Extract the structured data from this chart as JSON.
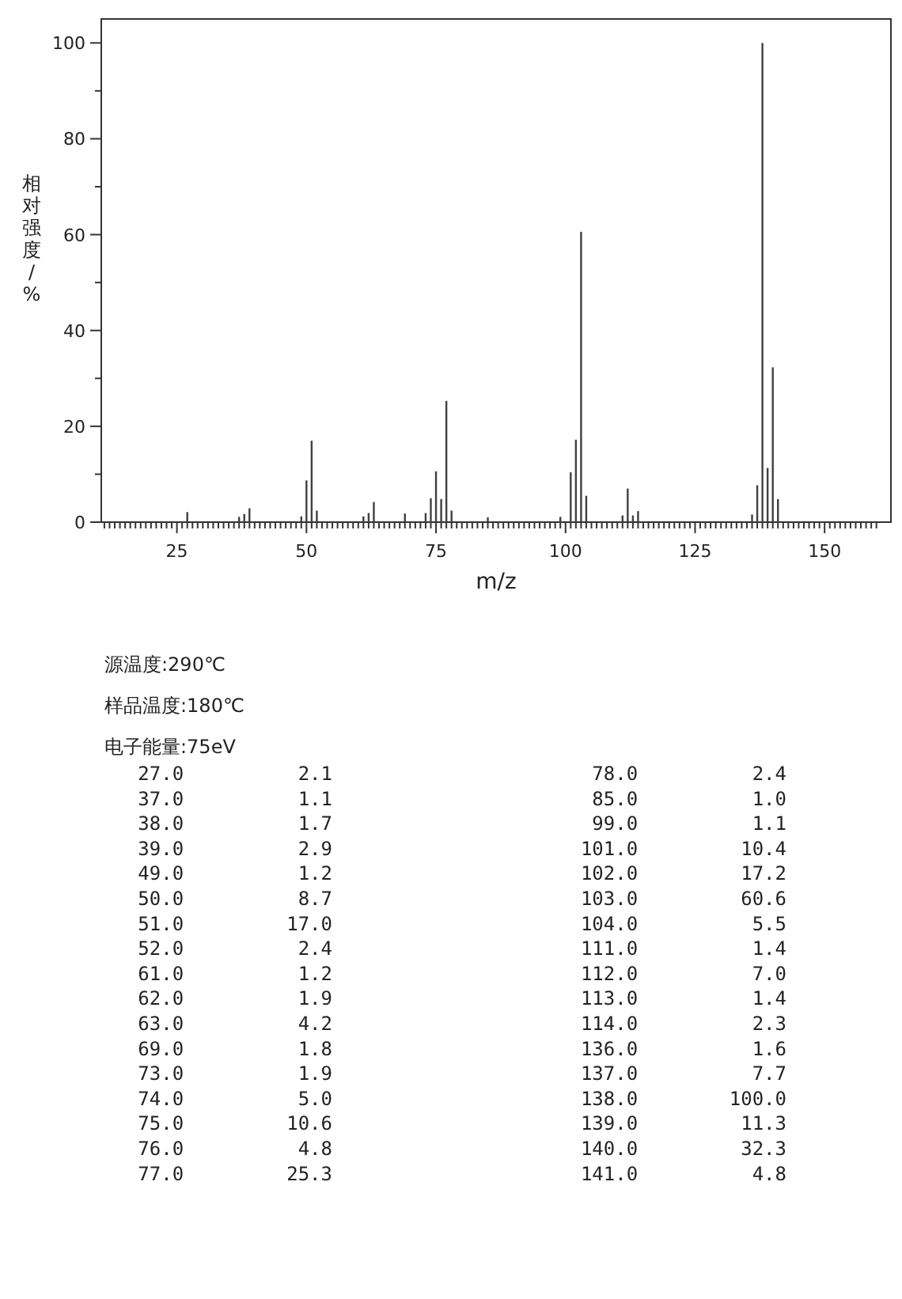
{
  "chart_data": [
    {
      "type": "bar",
      "xlabel": "m/z",
      "ylabel": "相对强度/%",
      "x": [
        27,
        37,
        38,
        39,
        49,
        50,
        51,
        52,
        61,
        62,
        63,
        69,
        73,
        74,
        75,
        76,
        77,
        78,
        85,
        99,
        101,
        102,
        103,
        104,
        111,
        112,
        113,
        114,
        136,
        137,
        138,
        139,
        140,
        141
      ],
      "values": [
        2.1,
        1.1,
        1.7,
        2.9,
        1.2,
        8.7,
        17.0,
        2.4,
        1.2,
        1.9,
        4.2,
        1.8,
        1.9,
        5.0,
        10.6,
        4.8,
        25.3,
        2.4,
        1.0,
        1.1,
        10.4,
        17.2,
        60.6,
        5.5,
        1.4,
        7.0,
        1.4,
        2.3,
        1.6,
        7.7,
        100.0,
        11.3,
        32.3,
        4.8
      ],
      "color": "#404040",
      "xlim": [
        10.4,
        162.8
      ],
      "ylim": [
        0,
        105
      ],
      "xticks": [
        {
          "value": 11,
          "label": null
        },
        {
          "value": 12,
          "label": null
        },
        {
          "value": 13,
          "label": null
        },
        {
          "value": 14,
          "label": null
        },
        {
          "value": 15,
          "label": null
        },
        {
          "value": 16,
          "label": null
        },
        {
          "value": 17,
          "label": null
        },
        {
          "value": 18,
          "label": null
        },
        {
          "value": 19,
          "label": null
        },
        {
          "value": 20,
          "label": null
        },
        {
          "value": 21,
          "label": null
        },
        {
          "value": 22,
          "label": null
        },
        {
          "value": 23,
          "label": null
        },
        {
          "value": 24,
          "label": null
        },
        25,
        {
          "value": 26,
          "label": null
        },
        {
          "value": 27,
          "label": null
        },
        {
          "value": 28,
          "label": null
        },
        {
          "value": 29,
          "label": null
        },
        {
          "value": 30,
          "label": null
        },
        {
          "value": 31,
          "label": null
        },
        {
          "value": 32,
          "label": null
        },
        {
          "value": 33,
          "label": null
        },
        {
          "value": 34,
          "label": null
        },
        {
          "value": 35,
          "label": null
        },
        {
          "value": 36,
          "label": null
        },
        {
          "value": 37,
          "label": null
        },
        {
          "value": 38,
          "label": null
        },
        {
          "value": 39,
          "label": null
        },
        {
          "value": 40,
          "label": null
        },
        {
          "value": 41,
          "label": null
        },
        {
          "value": 42,
          "label": null
        },
        {
          "value": 43,
          "label": null
        },
        {
          "value": 44,
          "label": null
        },
        {
          "value": 45,
          "label": null
        },
        {
          "value": 46,
          "label": null
        },
        {
          "value": 47,
          "label": null
        },
        {
          "value": 48,
          "label": null
        },
        {
          "value": 49,
          "label": null
        },
        50,
        {
          "value": 51,
          "label": null
        },
        {
          "value": 52,
          "label": null
        },
        {
          "value": 53,
          "label": null
        },
        {
          "value": 54,
          "label": null
        },
        {
          "value": 55,
          "label": null
        },
        {
          "value": 56,
          "label": null
        },
        {
          "value": 57,
          "label": null
        },
        {
          "value": 58,
          "label": null
        },
        {
          "value": 59,
          "label": null
        },
        {
          "value": 60,
          "label": null
        },
        {
          "value": 61,
          "label": null
        },
        {
          "value": 62,
          "label": null
        },
        {
          "value": 63,
          "label": null
        },
        {
          "value": 64,
          "label": null
        },
        {
          "value": 65,
          "label": null
        },
        {
          "value": 66,
          "label": null
        },
        {
          "value": 67,
          "label": null
        },
        {
          "value": 68,
          "label": null
        },
        {
          "value": 69,
          "label": null
        },
        {
          "value": 70,
          "label": null
        },
        {
          "value": 71,
          "label": null
        },
        {
          "value": 72,
          "label": null
        },
        {
          "value": 73,
          "label": null
        },
        {
          "value": 74,
          "label": null
        },
        75,
        {
          "value": 76,
          "label": null
        },
        {
          "value": 77,
          "label": null
        },
        {
          "value": 78,
          "label": null
        },
        {
          "value": 79,
          "label": null
        },
        {
          "value": 80,
          "label": null
        },
        {
          "value": 81,
          "label": null
        },
        {
          "value": 82,
          "label": null
        },
        {
          "value": 83,
          "label": null
        },
        {
          "value": 84,
          "label": null
        },
        {
          "value": 85,
          "label": null
        },
        {
          "value": 86,
          "label": null
        },
        {
          "value": 87,
          "label": null
        },
        {
          "value": 88,
          "label": null
        },
        {
          "value": 89,
          "label": null
        },
        {
          "value": 90,
          "label": null
        },
        {
          "value": 91,
          "label": null
        },
        {
          "value": 92,
          "label": null
        },
        {
          "value": 93,
          "label": null
        },
        {
          "value": 94,
          "label": null
        },
        {
          "value": 95,
          "label": null
        },
        {
          "value": 96,
          "label": null
        },
        {
          "value": 97,
          "label": null
        },
        {
          "value": 98,
          "label": null
        },
        {
          "value": 99,
          "label": null
        },
        100,
        {
          "value": 101,
          "label": null
        },
        {
          "value": 102,
          "label": null
        },
        {
          "value": 103,
          "label": null
        },
        {
          "value": 104,
          "label": null
        },
        {
          "value": 105,
          "label": null
        },
        {
          "value": 106,
          "label": null
        },
        {
          "value": 107,
          "label": null
        },
        {
          "value": 108,
          "label": null
        },
        {
          "value": 109,
          "label": null
        },
        {
          "value": 110,
          "label": null
        },
        {
          "value": 111,
          "label": null
        },
        {
          "value": 112,
          "label": null
        },
        {
          "value": 113,
          "label": null
        },
        {
          "value": 114,
          "label": null
        },
        {
          "value": 115,
          "label": null
        },
        {
          "value": 116,
          "label": null
        },
        {
          "value": 117,
          "label": null
        },
        {
          "value": 118,
          "label": null
        },
        {
          "value": 119,
          "label": null
        },
        {
          "value": 120,
          "label": null
        },
        {
          "value": 121,
          "label": null
        },
        {
          "value": 122,
          "label": null
        },
        {
          "value": 123,
          "label": null
        },
        {
          "value": 124,
          "label": null
        },
        125,
        {
          "value": 126,
          "label": null
        },
        {
          "value": 127,
          "label": null
        },
        {
          "value": 128,
          "label": null
        },
        {
          "value": 129,
          "label": null
        },
        {
          "value": 130,
          "label": null
        },
        {
          "value": 131,
          "label": null
        },
        {
          "value": 132,
          "label": null
        },
        {
          "value": 133,
          "label": null
        },
        {
          "value": 134,
          "label": null
        },
        {
          "value": 135,
          "label": null
        },
        {
          "value": 136,
          "label": null
        },
        {
          "value": 137,
          "label": null
        },
        {
          "value": 138,
          "label": null
        },
        {
          "value": 139,
          "label": null
        },
        {
          "value": 140,
          "label": null
        },
        {
          "value": 141,
          "label": null
        },
        {
          "value": 142,
          "label": null
        },
        {
          "value": 143,
          "label": null
        },
        {
          "value": 144,
          "label": null
        },
        {
          "value": 145,
          "label": null
        },
        {
          "value": 146,
          "label": null
        },
        {
          "value": 147,
          "label": null
        },
        {
          "value": 148,
          "label": null
        },
        {
          "value": 149,
          "label": null
        },
        150,
        {
          "value": 151,
          "label": null
        },
        {
          "value": 152,
          "label": null
        },
        {
          "value": 153,
          "label": null
        },
        {
          "value": 154,
          "label": null
        },
        {
          "value": 155,
          "label": null
        },
        {
          "value": 156,
          "label": null
        },
        {
          "value": 157,
          "label": null
        },
        {
          "value": 158,
          "label": null
        },
        {
          "value": 159,
          "label": null
        },
        {
          "value": 160,
          "label": null
        }
      ],
      "yticks": [
        0,
        {
          "value": 10,
          "label": null
        },
        20,
        {
          "value": 30,
          "label": null
        },
        40,
        {
          "value": 50,
          "label": null
        },
        60,
        {
          "value": 70,
          "label": null
        },
        80,
        {
          "value": 90,
          "label": null
        },
        100
      ]
    },
    {
      "type": "other",
      "annotations": [
        "源温度:290℃",
        "样品温度:180℃",
        "电子能量:75eV"
      ]
    },
    {
      "type": "other",
      "annotations": [
        "27.0          2.1",
        "37.0          1.1",
        "38.0          1.7",
        "39.0          2.9",
        "49.0          1.2",
        "50.0          8.7",
        "51.0         17.0",
        "52.0          2.4",
        "61.0          1.2",
        "62.0          1.9",
        "63.0          4.2",
        "69.0          1.8",
        "73.0          1.9",
        "74.0          5.0",
        "75.0         10.6",
        "76.0          4.8",
        "77.0         25.3",
        "78.0          2.4",
        "85.0          1.0",
        "99.0          1.1",
        "101.0         10.4",
        "102.0         17.2",
        "103.0         60.6",
        "104.0          5.5",
        "111.0          1.4",
        "112.0          7.0",
        "113.0          1.4",
        "114.0          2.3",
        "136.0          1.6",
        "137.0          7.7",
        "138.0        100.0",
        "139.0         11.3",
        "140.0         32.3",
        "141.0          4.8"
      ]
    }
  ]
}
